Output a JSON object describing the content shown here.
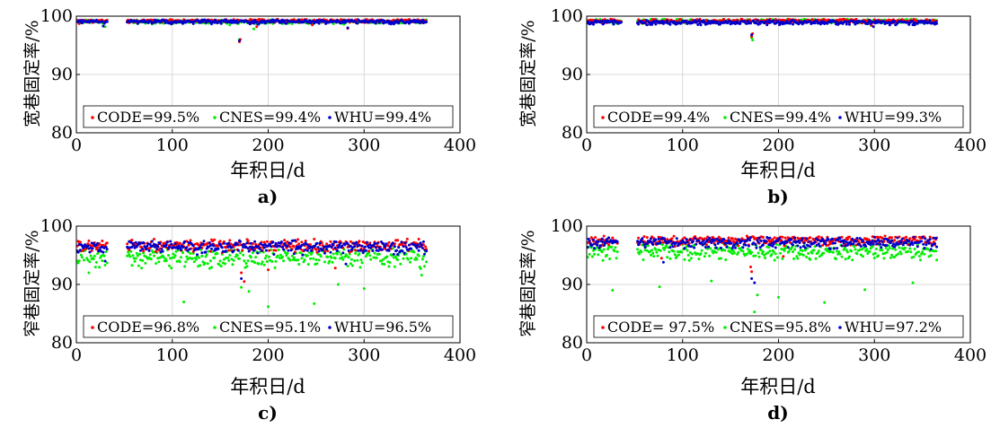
{
  "colors": {
    "CODE": "#ff0000",
    "CNES": "#00ee00",
    "WHU": "#0000cc"
  },
  "panels": [
    {
      "caption": "a)",
      "xlabel": "年积日/d",
      "ylabel": "宽巷固定率/%",
      "legend": [
        "CODE=99.5%",
        "CNES=99.4%",
        "WHU=99.4%"
      ]
    },
    {
      "caption": "b)",
      "xlabel": "年积日/d",
      "ylabel": "宽巷固定率/%",
      "legend": [
        "CODE=99.4%",
        "CNES=99.4%",
        "WHU=99.3%"
      ]
    },
    {
      "caption": "c)",
      "xlabel": "年积日/d",
      "ylabel": "窄巷固定率/%",
      "legend": [
        "CODE=96.8%",
        "CNES=95.1%",
        "WHU=96.5%"
      ]
    },
    {
      "caption": "d)",
      "xlabel": "年积日/d",
      "ylabel": "窄巷固定率/%",
      "legend": [
        "CODE= 97.5%",
        "CNES=95.8%",
        "WHU=97.2%"
      ]
    }
  ],
  "chart_data": [
    {
      "type": "scatter",
      "panel": "a)",
      "xlabel": "年积日/d",
      "ylabel": "宽巷固定率/%",
      "xlim": [
        0,
        400
      ],
      "ylim": [
        80,
        100
      ],
      "xticks": [
        0,
        100,
        200,
        300,
        400
      ],
      "yticks": [
        80,
        90,
        100
      ],
      "grid": true,
      "legend_position": "bottom",
      "gaps": [
        [
          32,
          53
        ]
      ],
      "series": [
        {
          "name": "CODE",
          "mean": 99.5,
          "base": 99.3,
          "spread": 0.6,
          "dips": [
            [
              170,
              95.6
            ],
            [
              171,
              96.0
            ],
            [
              188,
              98.2
            ],
            [
              283,
              97.9
            ],
            [
              246,
              98.5
            ],
            [
              3,
              98.7
            ]
          ]
        },
        {
          "name": "CNES",
          "mean": 99.4,
          "base": 99.2,
          "spread": 0.7,
          "dips": [
            [
              170,
              96.0
            ],
            [
              185,
              97.8
            ],
            [
              160,
              98.5
            ],
            [
              279,
              98.6
            ],
            [
              30,
              98.2
            ]
          ]
        },
        {
          "name": "WHU",
          "mean": 99.4,
          "base": 99.2,
          "spread": 0.7,
          "dips": [
            [
              170,
              95.8
            ],
            [
              28,
              98.3
            ],
            [
              283,
              98.0
            ],
            [
              190,
              98.6
            ],
            [
              101,
              98.9
            ]
          ]
        }
      ]
    },
    {
      "type": "scatter",
      "panel": "b)",
      "xlabel": "年积日/d",
      "ylabel": "宽巷固定率/%",
      "xlim": [
        0,
        400
      ],
      "ylim": [
        80,
        100
      ],
      "xticks": [
        0,
        100,
        200,
        300,
        400
      ],
      "yticks": [
        80,
        90,
        100
      ],
      "grid": true,
      "legend_position": "bottom",
      "gaps": [
        [
          36,
          53
        ]
      ],
      "series": [
        {
          "name": "CODE",
          "mean": 99.4,
          "base": 99.3,
          "spread": 0.7,
          "dips": [
            [
              172,
              96.5
            ],
            [
              173,
              97.0
            ],
            [
              297,
              98.4
            ],
            [
              62,
              98.6
            ]
          ]
        },
        {
          "name": "CNES",
          "mean": 99.4,
          "base": 99.3,
          "spread": 0.7,
          "dips": [
            [
              173,
              95.9
            ],
            [
              172,
              96.3
            ],
            [
              296,
              98.5
            ],
            [
              58,
              98.7
            ]
          ]
        },
        {
          "name": "WHU",
          "mean": 99.3,
          "base": 99.1,
          "spread": 0.8,
          "dips": [
            [
              172,
              96.8
            ],
            [
              299,
              98.2
            ],
            [
              63,
              98.5
            ],
            [
              105,
              98.7
            ]
          ]
        }
      ]
    },
    {
      "type": "scatter",
      "panel": "c)",
      "xlabel": "年积日/d",
      "ylabel": "窄巷固定率/%",
      "xlim": [
        0,
        400
      ],
      "ylim": [
        80,
        100
      ],
      "xticks": [
        0,
        100,
        200,
        300,
        400
      ],
      "yticks": [
        80,
        90,
        100
      ],
      "grid": true,
      "legend_position": "bottom",
      "gaps": [
        [
          32,
          53
        ]
      ],
      "series": [
        {
          "name": "CODE",
          "mean": 96.8,
          "base": 97.2,
          "spread": 2.2,
          "dips": [
            [
              172,
              92.0
            ],
            [
              175,
              90.5
            ],
            [
              200,
              92.5
            ],
            [
              270,
              92.8
            ]
          ]
        },
        {
          "name": "CNES",
          "mean": 95.1,
          "base": 95.3,
          "spread": 3.4,
          "dips": [
            [
              112,
              87.0
            ],
            [
              200,
              86.2
            ],
            [
              248,
              86.7
            ],
            [
              172,
              89.5
            ],
            [
              180,
              88.8
            ],
            [
              300,
              89.3
            ],
            [
              273,
              90.0
            ],
            [
              13,
              92.0
            ],
            [
              360,
              91.6
            ]
          ]
        },
        {
          "name": "WHU",
          "mean": 96.5,
          "base": 96.9,
          "spread": 2.4,
          "dips": [
            [
              172,
              91.0
            ],
            [
              30,
              94.0
            ],
            [
              281,
              93.5
            ]
          ]
        }
      ]
    },
    {
      "type": "scatter",
      "panel": "d)",
      "xlabel": "年积日/d",
      "ylabel": "窄巷固定率/%",
      "xlim": [
        0,
        400
      ],
      "ylim": [
        80,
        100
      ],
      "xticks": [
        0,
        100,
        200,
        300,
        400
      ],
      "yticks": [
        80,
        90,
        100
      ],
      "grid": true,
      "legend_position": "bottom",
      "gaps": [
        [
          32,
          53
        ]
      ],
      "series": [
        {
          "name": "CODE",
          "mean": 97.5,
          "base": 97.9,
          "spread": 1.8,
          "dips": [
            [
              171,
              93.0
            ],
            [
              172,
              92.2
            ],
            [
              78,
              94.5
            ],
            [
              205,
              94.8
            ]
          ]
        },
        {
          "name": "CNES",
          "mean": 95.8,
          "base": 96.2,
          "spread": 3.0,
          "dips": [
            [
              175,
              85.3
            ],
            [
              178,
              88.2
            ],
            [
              200,
              87.8
            ],
            [
              248,
              86.9
            ],
            [
              27,
              89.0
            ],
            [
              76,
              89.6
            ],
            [
              290,
              89.1
            ],
            [
              130,
              90.6
            ],
            [
              340,
              90.3
            ]
          ]
        },
        {
          "name": "WHU",
          "mean": 97.2,
          "base": 97.6,
          "spread": 2.0,
          "dips": [
            [
              172,
              91.0
            ],
            [
              175,
              90.3
            ],
            [
              80,
              93.8
            ]
          ]
        }
      ]
    }
  ]
}
